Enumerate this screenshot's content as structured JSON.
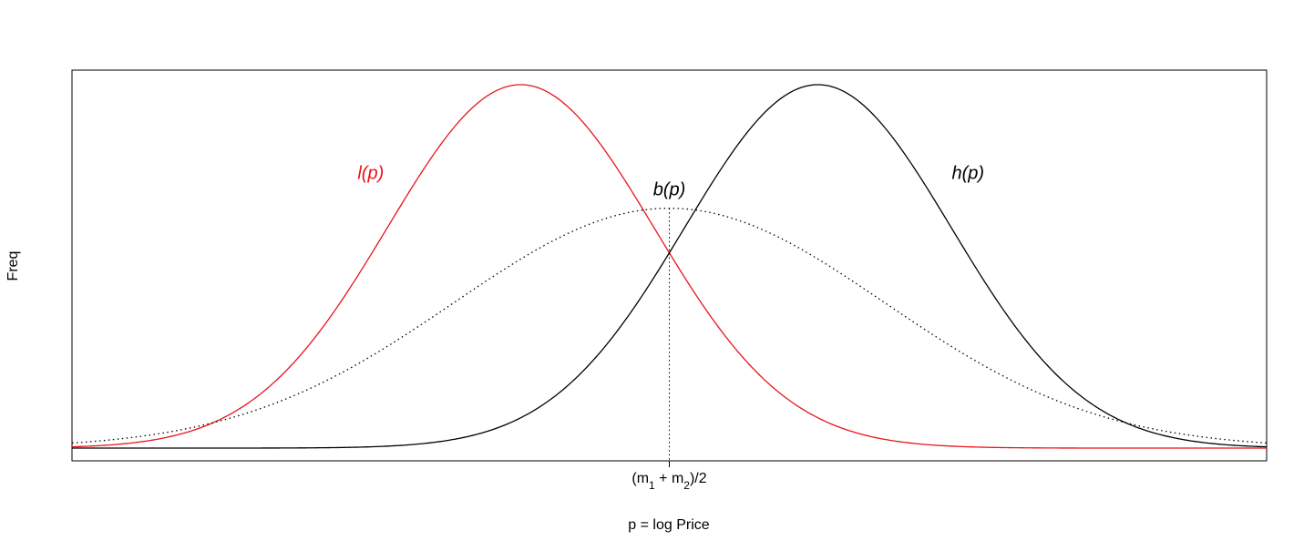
{
  "chart_data": {
    "type": "line",
    "title": "",
    "xlabel": "p = log Price",
    "ylabel": "Freq",
    "xlim": [
      -4.3,
      4.3
    ],
    "ylim": [
      -0.035,
      1.04
    ],
    "x_tick": {
      "value": 0,
      "label": "(m",
      "sub1": "1",
      "plus": " + m",
      "sub2": "2",
      "tail": ")/2"
    },
    "reference_line": {
      "x": 0,
      "y_from": 0,
      "y_to": 0.66,
      "style": "dotted"
    },
    "series": [
      {
        "name": "l(p)",
        "mean": -1.07,
        "sd": 0.96,
        "amplitude": 1.0,
        "color": "#e8141c",
        "style": "solid",
        "label_at": [
          -2.15,
          0.74
        ]
      },
      {
        "name": "h(p)",
        "mean": 1.07,
        "sd": 0.96,
        "amplitude": 1.0,
        "color": "#000000",
        "style": "solid",
        "label_at": [
          2.15,
          0.74
        ]
      },
      {
        "name": "b(p)",
        "mean": 0.0,
        "sd": 1.55,
        "amplitude": 0.66,
        "color": "#000000",
        "style": "dotted",
        "label_at": [
          0.0,
          0.695
        ]
      }
    ],
    "x_range": [
      -4.3,
      4.3
    ],
    "grid": false,
    "legend": "none"
  }
}
